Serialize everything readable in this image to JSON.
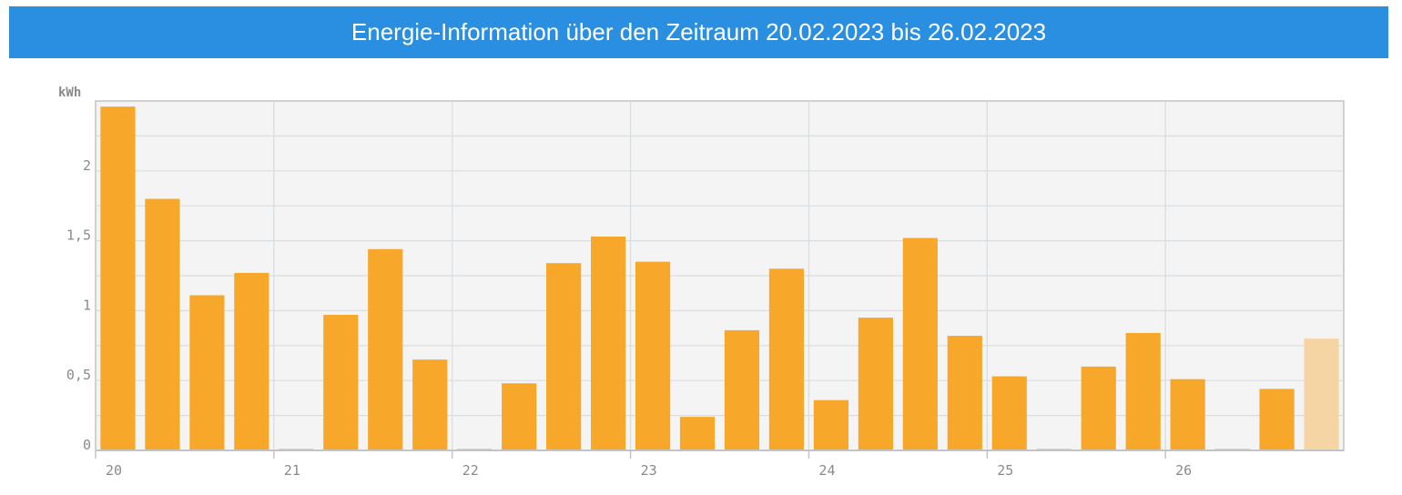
{
  "header": {
    "title": "Energie-Information über den Zeitraum 20.02.2023 bis 26.02.2023"
  },
  "colors": {
    "header_bg": "#2a8fe0",
    "bar": "#f7a82a",
    "bar_current": "#f6d5a4",
    "plot_bg": "#f4f4f4",
    "grid": "#d8dde0",
    "axis": "#c4c4c4"
  },
  "chart_data": {
    "type": "bar",
    "title": "Energie-Information über den Zeitraum 20.02.2023 bis 26.02.2023",
    "ylabel": "kWh",
    "xlabel": "",
    "ylim": [
      0,
      2.5
    ],
    "yticks": [
      {
        "value": 0,
        "label": "0"
      },
      {
        "value": 0.5,
        "label": "0,5"
      },
      {
        "value": 1,
        "label": "1"
      },
      {
        "value": 1.5,
        "label": "1,5"
      },
      {
        "value": 2,
        "label": "2"
      }
    ],
    "day_labels": [
      "20",
      "21",
      "22",
      "23",
      "24",
      "25",
      "26"
    ],
    "bars_per_day": 4,
    "values": [
      2.46,
      1.8,
      1.11,
      1.27,
      0.01,
      0.97,
      1.44,
      0.65,
      0.01,
      0.48,
      1.34,
      1.53,
      1.35,
      0.24,
      0.86,
      1.3,
      0.36,
      0.95,
      1.52,
      0.82,
      0.53,
      0.01,
      0.6,
      0.84,
      0.51,
      0.01,
      0.44,
      0.8
    ],
    "current_index": 27,
    "grid": true,
    "legend": "none"
  }
}
